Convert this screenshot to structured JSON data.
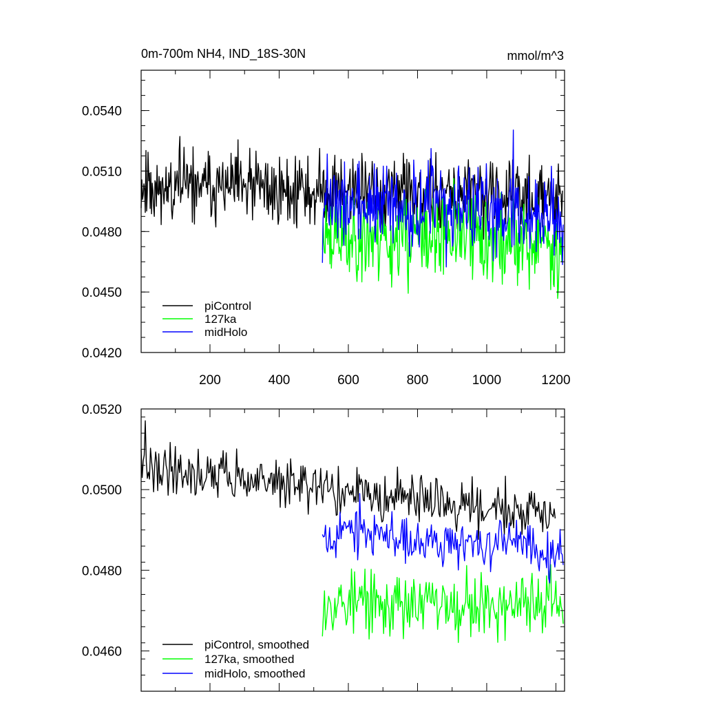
{
  "chart_data": [
    {
      "type": "line",
      "title": "0m-700m NH4, IND_18S-30N",
      "units": "mmol/m^3",
      "xlim": [
        1,
        1225
      ],
      "ylim": [
        0.042,
        0.056
      ],
      "yticks": [
        "0.0420",
        "0.0450",
        "0.0480",
        "0.0510",
        "0.0540"
      ],
      "xticks": [
        "200",
        "400",
        "600",
        "800",
        "1000",
        "1200"
      ],
      "legend_position": "bottom-left",
      "series": [
        {
          "name": "piControl",
          "color": "#000000",
          "x_range": [
            1,
            1220
          ],
          "level_start": 0.0503,
          "level_end": 0.0496,
          "noise": 0.0009,
          "spikes": 0.003,
          "seed": 11
        },
        {
          "name": "127ka",
          "color": "#00ff00",
          "x_range": [
            525,
            1222
          ],
          "level_start": 0.0478,
          "level_end": 0.0474,
          "noise": 0.0011,
          "spikes": 0.003,
          "seed": 23
        },
        {
          "name": "midHolo",
          "color": "#0000ff",
          "x_range": [
            525,
            1222
          ],
          "level_start": 0.0494,
          "level_end": 0.0488,
          "noise": 0.001,
          "spikes": 0.005,
          "seed": 37
        }
      ]
    },
    {
      "type": "line",
      "xlim": [
        1,
        1225
      ],
      "ylim": [
        0.045,
        0.052
      ],
      "yticks": [
        "0.0460",
        "0.0480",
        "0.0500",
        "0.0520"
      ],
      "legend_position": "bottom-left",
      "series": [
        {
          "name": "piControl, smoothed",
          "color": "#000000",
          "x_range": [
            1,
            1200
          ],
          "level_start": 0.0506,
          "level_end": 0.0493,
          "noise": 0.0003,
          "spikes": 0.0012,
          "seed": 41
        },
        {
          "name": "127ka, smoothed",
          "color": "#00ff00",
          "x_range": [
            525,
            1222
          ],
          "level_start": 0.0472,
          "level_end": 0.0471,
          "noise": 0.0004,
          "spikes": 0.001,
          "seed": 53
        },
        {
          "name": "midHolo, smoothed",
          "color": "#0000ff",
          "x_range": [
            525,
            1222
          ],
          "level_start": 0.049,
          "level_end": 0.0485,
          "noise": 0.0003,
          "spikes": 0.001,
          "seed": 67
        }
      ]
    }
  ]
}
